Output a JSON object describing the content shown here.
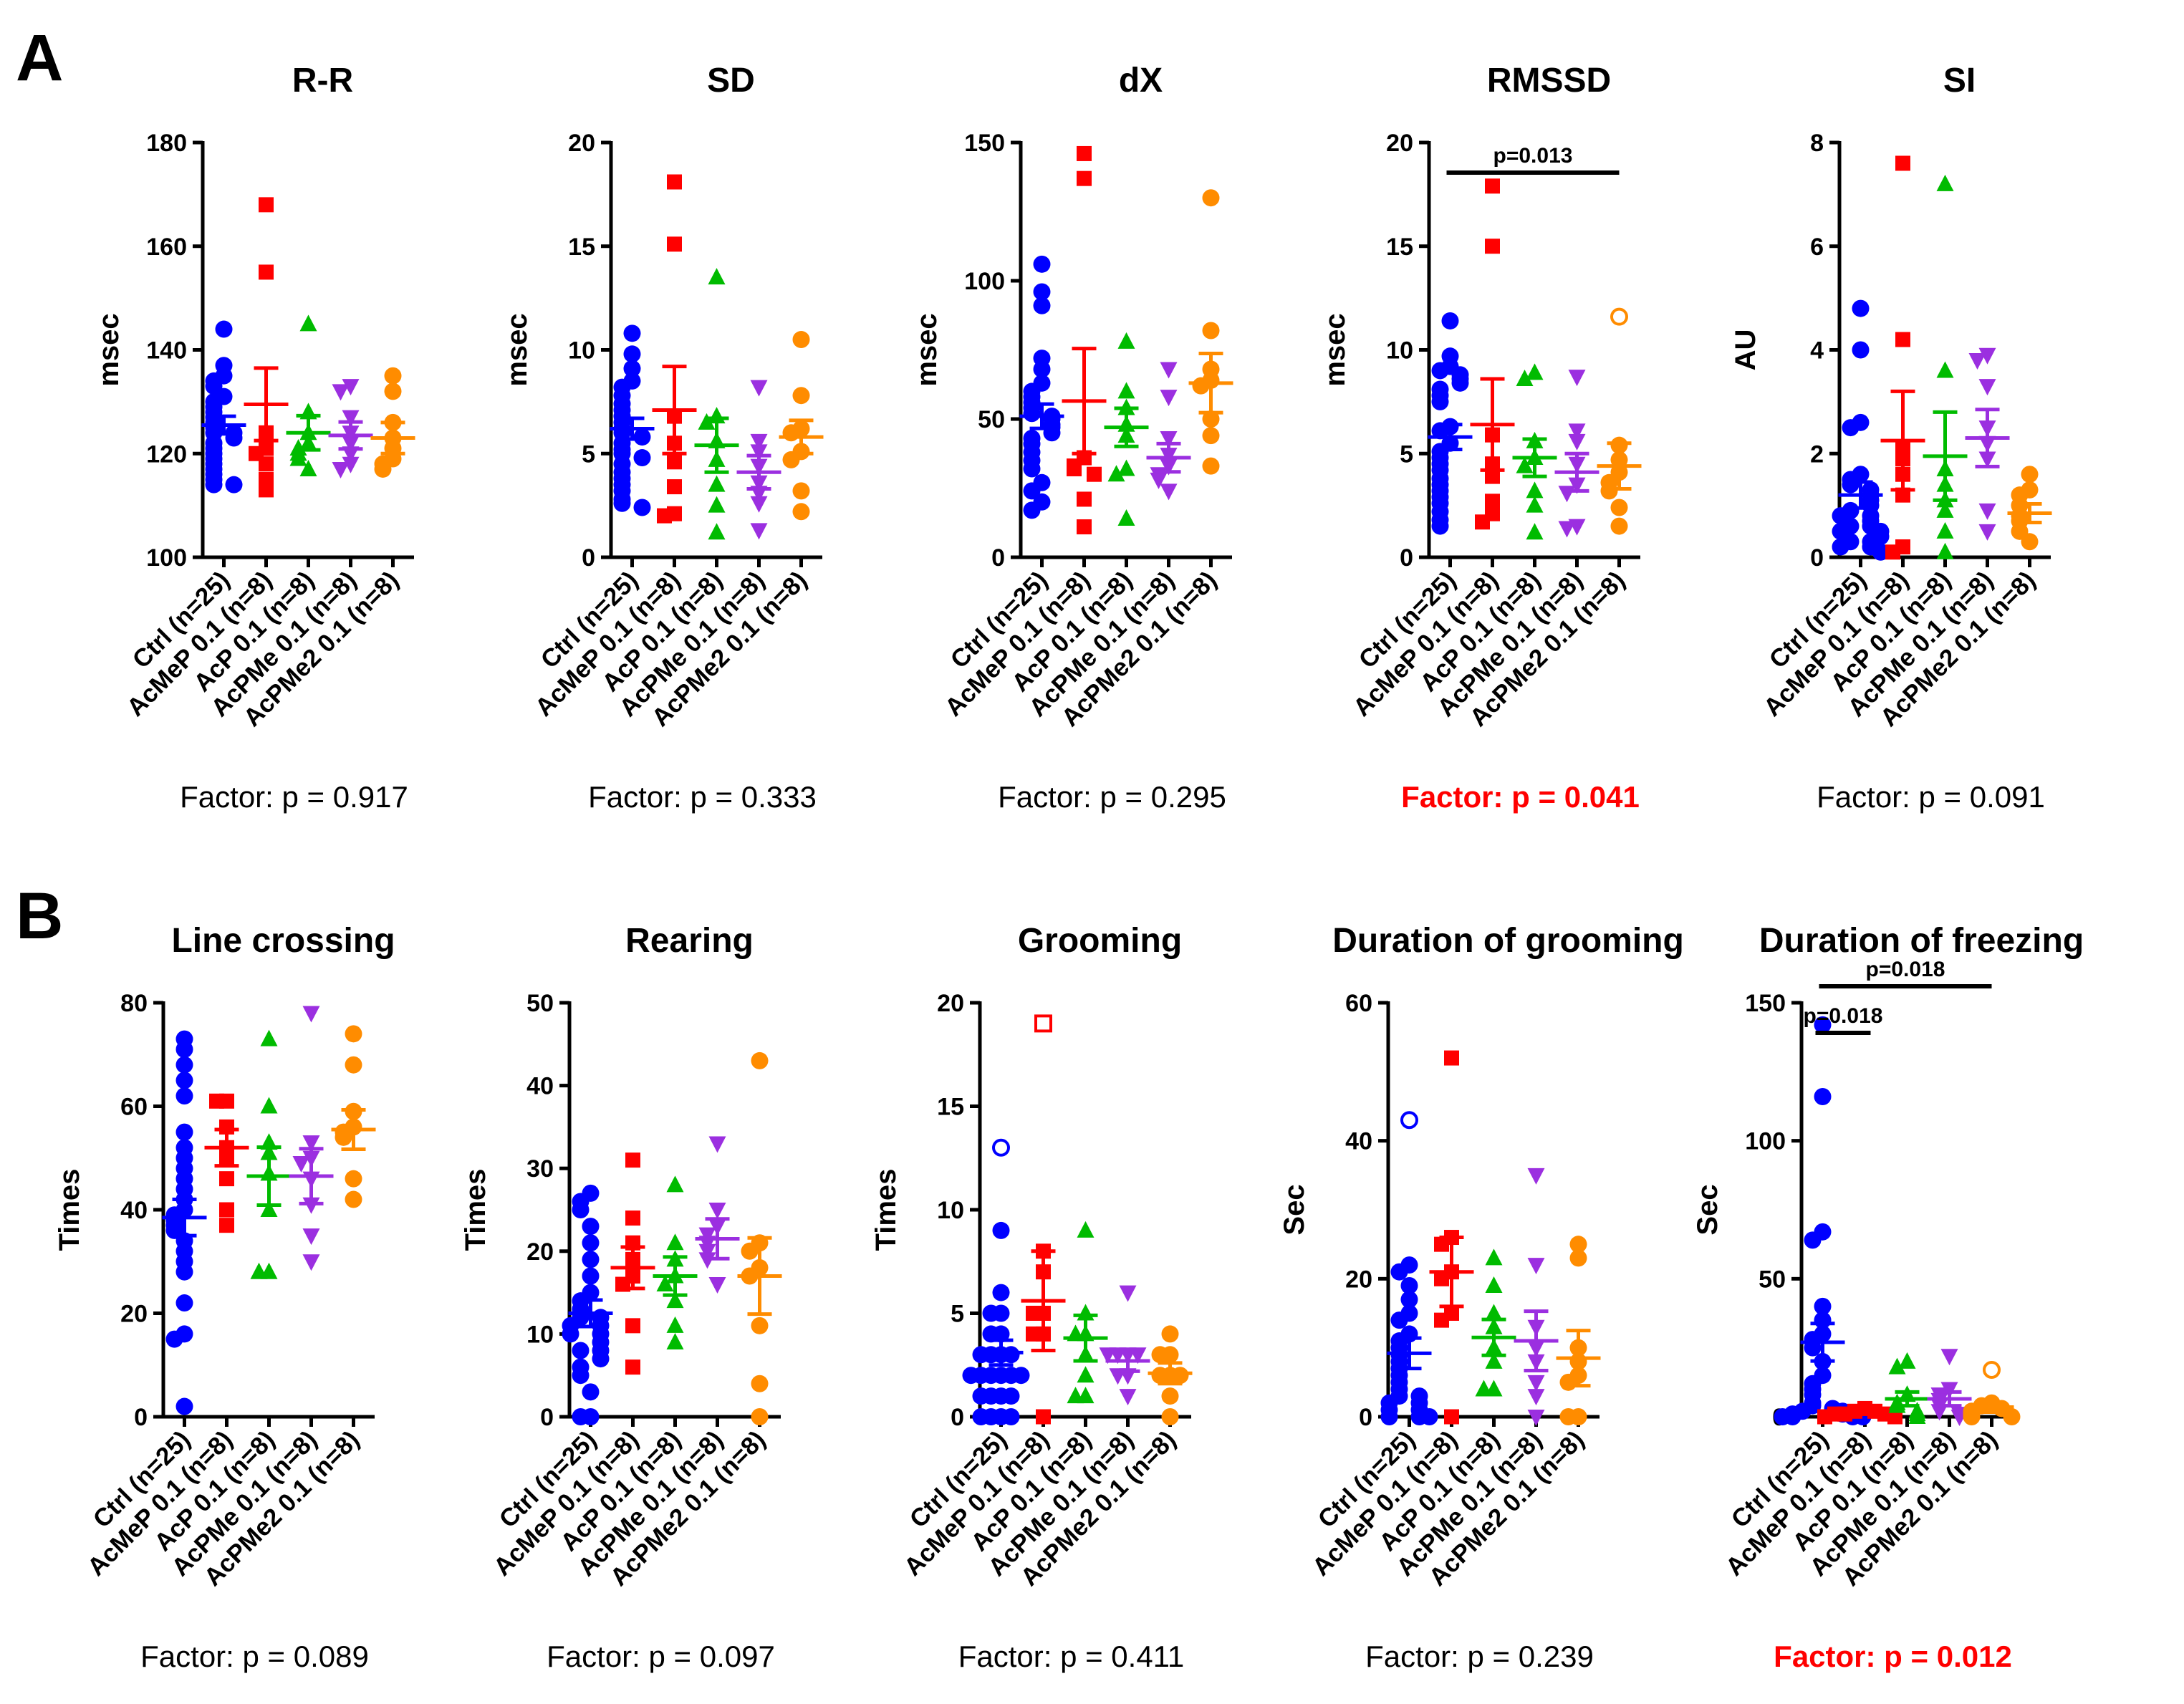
{
  "panel_labels": [
    "A",
    "B"
  ],
  "categories": [
    "Ctrl (n=25)",
    "AcMeP 0.1 (n=8)",
    "AcP 0.1 (n=8)",
    "AcPMe 0.1 (n=8)",
    "AcPMe2 0.1 (n=8)"
  ],
  "group_colors": [
    "#0000ff",
    "#ff0000",
    "#00bb00",
    "#9b2fe0",
    "#ff8c00"
  ],
  "group_markers": [
    "circle",
    "square",
    "triangle-up",
    "triangle-down",
    "circle"
  ],
  "chart_data": [
    {
      "type": "scatter",
      "title": "R-R",
      "ylabel": "msec",
      "ylim": [
        100,
        180
      ],
      "yticks": [
        100,
        120,
        140,
        160,
        180
      ],
      "factor_text": "Factor: p = 0.917",
      "factor_significant": false,
      "means": [
        125.5,
        129.5,
        124,
        123.5,
        123
      ],
      "sem": [
        1.7,
        7,
        3.3,
        2.6,
        3
      ],
      "points": [
        [
          144,
          137,
          135,
          134,
          133,
          131,
          130,
          129,
          128,
          127,
          126,
          125,
          124,
          124,
          123,
          122,
          121,
          120,
          119,
          118,
          117,
          116,
          115,
          114,
          114
        ],
        [
          168,
          155,
          124,
          121,
          120,
          118,
          115,
          113
        ],
        [
          145,
          128,
          124,
          122,
          121,
          120,
          119,
          117
        ],
        [
          133,
          132,
          127,
          124,
          122,
          120,
          118,
          117
        ],
        [
          135,
          132,
          126,
          123,
          121,
          119,
          118,
          117
        ]
      ],
      "hollow": [],
      "significance": []
    },
    {
      "type": "scatter",
      "title": "SD",
      "ylabel": "msec",
      "ylim": [
        0,
        20
      ],
      "yticks": [
        0,
        5,
        10,
        15,
        20
      ],
      "factor_text": "Factor: p = 0.333",
      "factor_significant": false,
      "means": [
        6.2,
        7.1,
        5.4,
        4.1,
        5.8
      ],
      "sem": [
        0.5,
        2.1,
        1.3,
        0.8,
        0.8
      ],
      "points": [
        [
          10.8,
          9.8,
          9.1,
          8.5,
          8.2,
          7.8,
          7.4,
          7.1,
          6.8,
          6.5,
          6.2,
          6,
          5.8,
          5.5,
          5.2,
          5,
          4.8,
          4.5,
          4.1,
          3.8,
          3.5,
          3.2,
          2.8,
          2.6,
          2.4
        ],
        [
          18.1,
          15.1,
          6.8,
          5.5,
          4.6,
          3.4,
          2.1,
          2
        ],
        [
          13.5,
          6.8,
          6.5,
          5.6,
          4.7,
          3.5,
          2.5,
          1.2
        ],
        [
          8.2,
          5.6,
          5.1,
          4.4,
          3.6,
          3.1,
          2.6,
          1.3
        ],
        [
          10.5,
          7.8,
          6.2,
          6,
          5.1,
          4.7,
          3.2,
          2.2
        ]
      ],
      "hollow": [],
      "significance": []
    },
    {
      "type": "scatter",
      "title": "dX",
      "ylabel": "msec",
      "ylim": [
        0,
        150
      ],
      "yticks": [
        0,
        50,
        100,
        150
      ],
      "factor_text": "Factor: p = 0.295",
      "factor_significant": false,
      "means": [
        51,
        56.5,
        47,
        36,
        63
      ],
      "sem": [
        4.4,
        19,
        6.9,
        5.1,
        10.7
      ],
      "points": [
        [
          106,
          96,
          91,
          72,
          68,
          63,
          60,
          58,
          56,
          54,
          52,
          51,
          50,
          48,
          47,
          45,
          43,
          41,
          38,
          35,
          32,
          27,
          24,
          20,
          17
        ],
        [
          146,
          137,
          36,
          33,
          32,
          30,
          21,
          11
        ],
        [
          78,
          60,
          54,
          48,
          44,
          32,
          30,
          14
        ],
        [
          68,
          58,
          43,
          37,
          33,
          30,
          28,
          24
        ],
        [
          130,
          82,
          68,
          64,
          62,
          50,
          44,
          33
        ]
      ],
      "hollow": [],
      "significance": []
    },
    {
      "type": "scatter",
      "title": "RMSSD",
      "ylabel": "msec",
      "ylim": [
        0,
        20
      ],
      "yticks": [
        0,
        5,
        10,
        15,
        20
      ],
      "factor_text": "Factor: p = 0.041",
      "factor_significant": true,
      "means": [
        5.8,
        6.4,
        4.8,
        4.1,
        4.4
      ],
      "sem": [
        0.6,
        2.2,
        0.9,
        0.9,
        1.1
      ],
      "points": [
        [
          11.4,
          9.7,
          9.2,
          9,
          8.8,
          8.6,
          8.4,
          8.1,
          7.8,
          7.5,
          6.3,
          6.1,
          5.5,
          5.1,
          4.8,
          4.5,
          4.2,
          3.8,
          3.5,
          3.2,
          2.9,
          2.6,
          2.2,
          1.8,
          1.5
        ],
        [
          17.9,
          15,
          5.9,
          4.5,
          3.9,
          2.7,
          2.1,
          1.7
        ],
        [
          8.9,
          8.6,
          5.6,
          4.8,
          4.4,
          3.2,
          2.5,
          1.2
        ],
        [
          8.7,
          6.1,
          5.6,
          4.5,
          3.5,
          3.1,
          1.5,
          1.4
        ],
        [
          11.6,
          5.4,
          4.7,
          4.1,
          3.6,
          3.2,
          2.4,
          1.5
        ]
      ],
      "hollow": [
        [
          4,
          0
        ]
      ],
      "significance": [
        {
          "from": 0,
          "to": 4,
          "label": "p=0.013",
          "level": 0
        }
      ]
    },
    {
      "type": "scatter",
      "title": "SI",
      "ylabel": "AU",
      "ylim": [
        0,
        8
      ],
      "yticks": [
        0,
        2,
        4,
        6,
        8
      ],
      "factor_text": "Factor: p = 0.091",
      "factor_significant": false,
      "means": [
        1.2,
        2.25,
        1.95,
        2.3,
        0.85
      ],
      "sem": [
        0.25,
        0.95,
        0.85,
        0.55,
        0.18
      ],
      "points": [
        [
          4.8,
          4,
          2.6,
          2.5,
          1.6,
          1.5,
          1.4,
          1.3,
          1.2,
          1.1,
          1,
          0.9,
          0.8,
          0.8,
          0.7,
          0.6,
          0.6,
          0.5,
          0.5,
          0.4,
          0.3,
          0.3,
          0.2,
          0.2,
          0.1
        ],
        [
          7.6,
          4.2,
          2.1,
          1.9,
          1.6,
          1.2,
          0.2,
          0.1
        ],
        [
          7.2,
          3.6,
          1.7,
          1.4,
          1.1,
          0.9,
          0.5,
          0.1
        ],
        [
          3.9,
          3.8,
          3.3,
          2.5,
          2.2,
          1.9,
          0.9,
          0.5
        ],
        [
          1.6,
          1.3,
          1.2,
          1,
          0.8,
          0.7,
          0.5,
          0.3
        ]
      ],
      "hollow": [],
      "significance": []
    },
    {
      "type": "scatter",
      "title": "Line crossing",
      "ylabel": "Times",
      "ylim": [
        0,
        80
      ],
      "yticks": [
        0,
        20,
        40,
        60,
        80
      ],
      "factor_text": "Factor: p = 0.089",
      "factor_significant": false,
      "means": [
        38.5,
        52,
        46.5,
        46.5,
        55.5
      ],
      "sem": [
        3.5,
        3.5,
        5.6,
        5.3,
        3.8
      ],
      "points": [
        [
          73,
          71,
          68,
          65,
          62,
          55,
          52,
          50,
          48,
          46,
          44,
          42,
          40,
          39,
          38,
          37,
          36,
          34,
          32,
          30,
          28,
          22,
          16,
          15,
          2
        ],
        [
          61,
          61,
          56,
          52,
          50,
          46,
          40,
          37
        ],
        [
          73,
          60,
          53,
          51,
          47,
          40,
          28,
          28
        ],
        [
          78,
          53,
          50,
          49,
          46,
          41,
          35,
          30
        ],
        [
          74,
          68,
          59,
          56,
          55,
          54,
          46,
          42
        ]
      ],
      "hollow": [],
      "significance": []
    },
    {
      "type": "scatter",
      "title": "Rearing",
      "ylabel": "Times",
      "ylim": [
        0,
        50
      ],
      "yticks": [
        0,
        10,
        20,
        30,
        40,
        50
      ],
      "factor_text": "Factor: p = 0.097",
      "factor_significant": false,
      "means": [
        12.5,
        18,
        17,
        21.5,
        17
      ],
      "sem": [
        1.6,
        2.5,
        2.3,
        2.4,
        4.6
      ],
      "points": [
        [
          27,
          26,
          25,
          23,
          21,
          19,
          17,
          15,
          14,
          13,
          12,
          12,
          11,
          11,
          10,
          10,
          9,
          8,
          8,
          7,
          6,
          5,
          3,
          0,
          0
        ],
        [
          31,
          24,
          21,
          19,
          17,
          16,
          11,
          6
        ],
        [
          28,
          21,
          19,
          17,
          16,
          14,
          11,
          9
        ],
        [
          33,
          25,
          23,
          22,
          21,
          20,
          19,
          16
        ],
        [
          43,
          21,
          20,
          18,
          17,
          11,
          4,
          0
        ]
      ],
      "hollow": [],
      "significance": []
    },
    {
      "type": "scatter",
      "title": "Grooming",
      "ylabel": "Times",
      "ylim": [
        0,
        20
      ],
      "yticks": [
        0,
        5,
        10,
        15,
        20
      ],
      "factor_text": "Factor: p = 0.411",
      "factor_significant": false,
      "means": [
        3.1,
        5.6,
        3.8,
        2.7,
        2.1
      ],
      "sem": [
        0.6,
        2.4,
        1.1,
        0.5,
        0.5
      ],
      "points": [
        [
          13,
          9,
          6,
          5,
          5,
          4,
          4,
          3,
          3,
          3,
          3,
          2,
          2,
          2,
          2,
          2,
          2,
          1,
          1,
          1,
          1,
          0,
          0,
          0,
          0
        ],
        [
          19,
          8,
          7,
          5,
          5,
          4,
          4,
          0
        ],
        [
          9,
          5,
          4,
          4,
          3,
          2,
          1,
          1
        ],
        [
          6,
          3,
          3,
          3,
          3,
          2,
          2,
          1
        ],
        [
          4,
          3,
          3,
          2,
          2,
          2,
          1,
          0
        ]
      ],
      "hollow": [
        [
          0,
          0
        ],
        [
          1,
          0
        ]
      ],
      "significance": []
    },
    {
      "type": "scatter",
      "title": "Duration of grooming",
      "ylabel": "Sec",
      "ylim": [
        0,
        60
      ],
      "yticks": [
        0,
        20,
        40,
        60
      ],
      "factor_text": "Factor: p = 0.239",
      "factor_significant": false,
      "means": [
        9.2,
        21,
        11.5,
        11,
        8.5
      ],
      "sem": [
        2.2,
        5,
        2.6,
        4.3,
        4
      ],
      "points": [
        [
          43,
          22,
          21,
          19,
          17,
          15,
          14,
          12,
          11,
          10,
          9,
          8,
          7,
          6,
          5,
          4,
          3,
          3,
          2,
          2,
          1,
          1,
          0,
          0,
          0
        ],
        [
          52,
          26,
          25,
          21,
          20,
          15,
          14,
          0
        ],
        [
          23,
          19,
          15,
          13,
          10,
          8,
          4,
          4
        ],
        [
          35,
          22,
          13,
          10,
          8,
          5,
          3,
          0
        ],
        [
          25,
          23,
          10,
          8,
          6,
          5,
          0,
          0
        ]
      ],
      "hollow": [
        [
          0,
          0
        ]
      ],
      "significance": []
    },
    {
      "type": "scatter",
      "title": "Duration of freezing",
      "ylabel": "Sec",
      "ylim": [
        0,
        150
      ],
      "yticks": [
        0,
        50,
        100,
        150
      ],
      "factor_text": "Factor: p = 0.012",
      "factor_significant": true,
      "means": [
        27,
        1.5,
        6.5,
        6.5,
        3.5
      ],
      "sem": [
        6.8,
        0.5,
        2.5,
        2.5,
        1.8
      ],
      "points": [
        [
          142,
          116,
          67,
          64,
          40,
          35,
          30,
          28,
          25,
          20,
          15,
          12,
          10,
          8,
          5,
          4,
          3,
          2,
          2,
          1,
          1,
          0,
          0,
          0,
          0
        ],
        [
          3,
          2,
          2,
          1,
          1,
          1,
          0,
          0
        ],
        [
          20,
          18,
          8,
          5,
          4,
          2,
          1,
          0
        ],
        [
          22,
          10,
          8,
          6,
          4,
          2,
          1,
          0
        ],
        [
          17,
          5,
          4,
          3,
          2,
          1,
          0,
          0
        ]
      ],
      "hollow": [
        [
          4,
          0
        ]
      ],
      "significance": [
        {
          "from": 0,
          "to": 1,
          "label": "p=0.018",
          "level": 0
        },
        {
          "from": 0,
          "to": 4,
          "label": "p=0.018",
          "level": 1
        }
      ]
    }
  ]
}
